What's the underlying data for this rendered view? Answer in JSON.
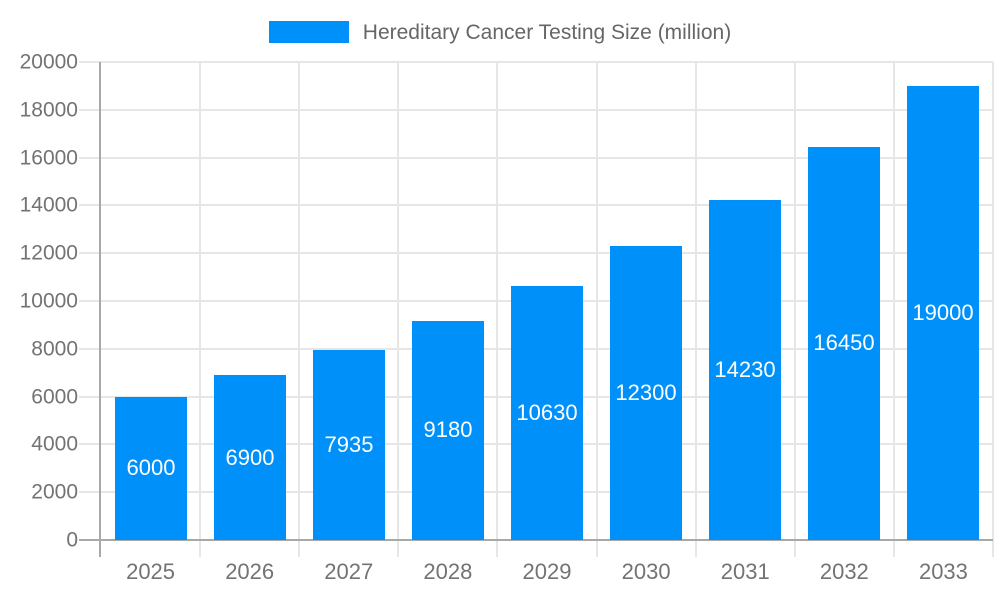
{
  "page": {
    "background": "#ffffff"
  },
  "legend": {
    "label": "Hereditary Cancer Testing Size (million)"
  },
  "colors": {
    "bar": "#0090fa",
    "bar_label": "#ffffff",
    "axis_line": "#a8a8a8",
    "grid_line": "#e6e6e6",
    "tick_label": "#737373",
    "legend_text": "#666666",
    "background": "#ffffff"
  },
  "chart_data": {
    "type": "bar",
    "title": "Hereditary Cancer Testing Size (million)",
    "categories": [
      "2025",
      "2026",
      "2027",
      "2028",
      "2029",
      "2030",
      "2031",
      "2032",
      "2033"
    ],
    "values": [
      6000,
      6900,
      7935,
      9180,
      10630,
      12300,
      14230,
      16450,
      19000
    ],
    "xlabel": "",
    "ylabel": "",
    "ylim": [
      0,
      20000
    ],
    "ytick_step": 2000,
    "yticks": [
      0,
      2000,
      4000,
      6000,
      8000,
      10000,
      12000,
      14000,
      16000,
      18000,
      20000
    ],
    "grid": true,
    "legend_position": "top",
    "value_label_position": "inside-center",
    "bar_width_fraction": 0.73
  }
}
